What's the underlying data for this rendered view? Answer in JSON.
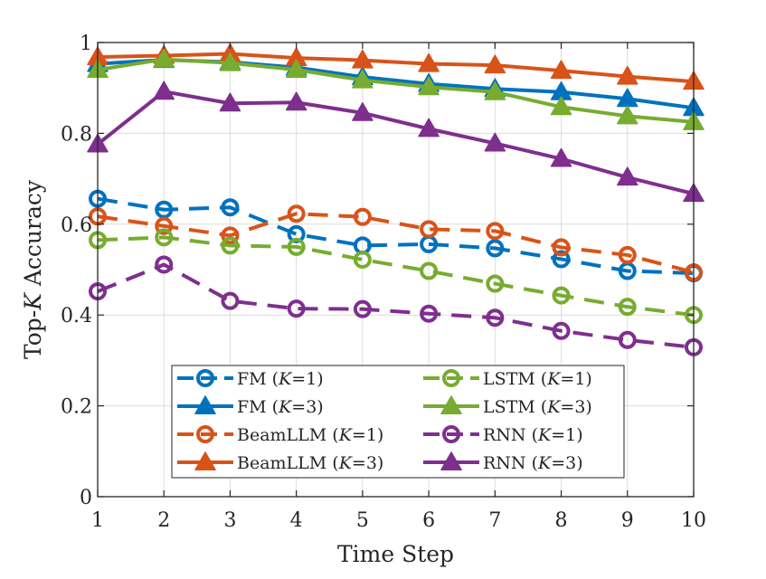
{
  "chart_data": {
    "type": "line",
    "title": "",
    "xlabel": "Time Step",
    "ylabel_prefix": "Top-",
    "ylabel_var": "K",
    "ylabel_suffix": " Accuracy",
    "xlim": [
      1,
      10
    ],
    "ylim": [
      0,
      1
    ],
    "grid": true,
    "legend_position": "bottom-center",
    "x": [
      1,
      2,
      3,
      4,
      5,
      6,
      7,
      8,
      9,
      10
    ],
    "x_tick_labels": [
      "1",
      "2",
      "3",
      "4",
      "5",
      "6",
      "7",
      "8",
      "9",
      "10"
    ],
    "y_ticks": [
      0,
      0.2,
      0.4,
      0.6,
      0.8,
      1
    ],
    "y_tick_labels": [
      "0",
      "0.2",
      "0.4",
      "0.6",
      "0.8",
      "1"
    ],
    "series": [
      {
        "name": "FM (K=1)",
        "label_main": "FM (",
        "label_var": "K",
        "label_end": "=1)",
        "color": "#0072BD",
        "dash": true,
        "marker": "circle",
        "values": [
          0.656,
          0.632,
          0.637,
          0.578,
          0.553,
          0.556,
          0.547,
          0.523,
          0.497,
          0.492
        ]
      },
      {
        "name": "FM (K=3)",
        "label_main": "FM (",
        "label_var": "K",
        "label_end": "=3)",
        "color": "#0072BD",
        "dash": false,
        "marker": "triangle",
        "values": [
          0.953,
          0.962,
          0.957,
          0.945,
          0.924,
          0.909,
          0.898,
          0.891,
          0.876,
          0.856
        ]
      },
      {
        "name": "BeamLLM (K=1)",
        "label_main": "BeamLLM (",
        "label_var": "K",
        "label_end": "=1)",
        "color": "#D95319",
        "dash": true,
        "marker": "circle",
        "values": [
          0.617,
          0.596,
          0.575,
          0.623,
          0.616,
          0.589,
          0.585,
          0.549,
          0.532,
          0.494
        ]
      },
      {
        "name": "BeamLLM (K=3)",
        "label_main": "BeamLLM (",
        "label_var": "K",
        "label_end": "=3)",
        "color": "#D95319",
        "dash": false,
        "marker": "triangle",
        "values": [
          0.968,
          0.971,
          0.975,
          0.966,
          0.961,
          0.953,
          0.95,
          0.938,
          0.925,
          0.914
        ]
      },
      {
        "name": "LSTM (K=1)",
        "label_main": "LSTM (",
        "label_var": "K",
        "label_end": "=1)",
        "color": "#77AC30",
        "dash": true,
        "marker": "circle",
        "values": [
          0.565,
          0.571,
          0.553,
          0.55,
          0.522,
          0.497,
          0.469,
          0.443,
          0.418,
          0.4
        ]
      },
      {
        "name": "LSTM (K=3)",
        "label_main": "LSTM (",
        "label_var": "K",
        "label_end": "=3)",
        "color": "#77AC30",
        "dash": false,
        "marker": "triangle",
        "values": [
          0.94,
          0.963,
          0.955,
          0.94,
          0.917,
          0.902,
          0.891,
          0.858,
          0.838,
          0.825
        ]
      },
      {
        "name": "RNN (K=1)",
        "label_main": "RNN (",
        "label_var": "K",
        "label_end": "=1)",
        "color": "#7E2F8E",
        "dash": true,
        "marker": "circle",
        "values": [
          0.452,
          0.511,
          0.431,
          0.414,
          0.413,
          0.403,
          0.394,
          0.365,
          0.345,
          0.329
        ]
      },
      {
        "name": "RNN (K=3)",
        "label_main": "RNN (",
        "label_var": "K",
        "label_end": "=3)",
        "color": "#7E2F8E",
        "dash": false,
        "marker": "triangle",
        "values": [
          0.776,
          0.892,
          0.866,
          0.868,
          0.845,
          0.81,
          0.778,
          0.744,
          0.703,
          0.667
        ]
      }
    ]
  }
}
